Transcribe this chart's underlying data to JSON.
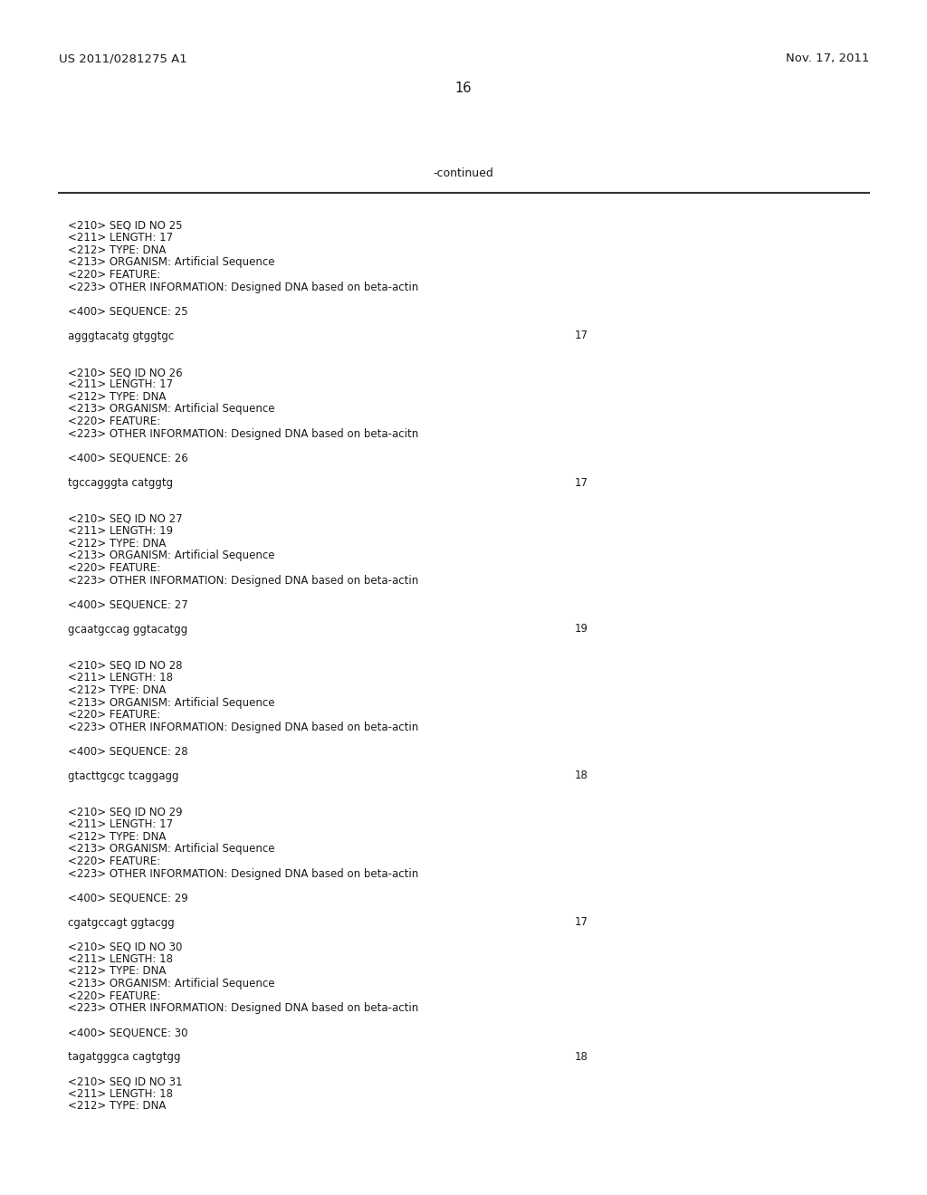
{
  "background_color": "#ffffff",
  "page_number": "16",
  "patent_number": "US 2011/0281275 A1",
  "patent_date": "Nov. 17, 2011",
  "continued_label": "-continued",
  "body_font_size": 8.5,
  "header_font_size": 9.0,
  "page_num_font_size": 10.5,
  "patent_info_font_size": 9.5,
  "line_color": "#333333",
  "text_color": "#1a1a1a",
  "content_lines": [
    {
      "text": "<210> SEQ ID NO 25",
      "x": 75,
      "num": null
    },
    {
      "text": "<211> LENGTH: 17",
      "x": 75,
      "num": null
    },
    {
      "text": "<212> TYPE: DNA",
      "x": 75,
      "num": null
    },
    {
      "text": "<213> ORGANISM: Artificial Sequence",
      "x": 75,
      "num": null
    },
    {
      "text": "<220> FEATURE:",
      "x": 75,
      "num": null
    },
    {
      "text": "<223> OTHER INFORMATION: Designed DNA based on beta-actin",
      "x": 75,
      "num": null
    },
    {
      "text": "",
      "x": 75,
      "num": null
    },
    {
      "text": "<400> SEQUENCE: 25",
      "x": 75,
      "num": null
    },
    {
      "text": "",
      "x": 75,
      "num": null
    },
    {
      "text": "agggtacatg gtggtgc",
      "x": 75,
      "num": "17"
    },
    {
      "text": "",
      "x": 75,
      "num": null
    },
    {
      "text": "",
      "x": 75,
      "num": null
    },
    {
      "text": "<210> SEQ ID NO 26",
      "x": 75,
      "num": null
    },
    {
      "text": "<211> LENGTH: 17",
      "x": 75,
      "num": null
    },
    {
      "text": "<212> TYPE: DNA",
      "x": 75,
      "num": null
    },
    {
      "text": "<213> ORGANISM: Artificial Sequence",
      "x": 75,
      "num": null
    },
    {
      "text": "<220> FEATURE:",
      "x": 75,
      "num": null
    },
    {
      "text": "<223> OTHER INFORMATION: Designed DNA based on beta-acitn",
      "x": 75,
      "num": null
    },
    {
      "text": "",
      "x": 75,
      "num": null
    },
    {
      "text": "<400> SEQUENCE: 26",
      "x": 75,
      "num": null
    },
    {
      "text": "",
      "x": 75,
      "num": null
    },
    {
      "text": "tgccagggta catggtg",
      "x": 75,
      "num": "17"
    },
    {
      "text": "",
      "x": 75,
      "num": null
    },
    {
      "text": "",
      "x": 75,
      "num": null
    },
    {
      "text": "<210> SEQ ID NO 27",
      "x": 75,
      "num": null
    },
    {
      "text": "<211> LENGTH: 19",
      "x": 75,
      "num": null
    },
    {
      "text": "<212> TYPE: DNA",
      "x": 75,
      "num": null
    },
    {
      "text": "<213> ORGANISM: Artificial Sequence",
      "x": 75,
      "num": null
    },
    {
      "text": "<220> FEATURE:",
      "x": 75,
      "num": null
    },
    {
      "text": "<223> OTHER INFORMATION: Designed DNA based on beta-actin",
      "x": 75,
      "num": null
    },
    {
      "text": "",
      "x": 75,
      "num": null
    },
    {
      "text": "<400> SEQUENCE: 27",
      "x": 75,
      "num": null
    },
    {
      "text": "",
      "x": 75,
      "num": null
    },
    {
      "text": "gcaatgccag ggtacatgg",
      "x": 75,
      "num": "19"
    },
    {
      "text": "",
      "x": 75,
      "num": null
    },
    {
      "text": "",
      "x": 75,
      "num": null
    },
    {
      "text": "<210> SEQ ID NO 28",
      "x": 75,
      "num": null
    },
    {
      "text": "<211> LENGTH: 18",
      "x": 75,
      "num": null
    },
    {
      "text": "<212> TYPE: DNA",
      "x": 75,
      "num": null
    },
    {
      "text": "<213> ORGANISM: Artificial Sequence",
      "x": 75,
      "num": null
    },
    {
      "text": "<220> FEATURE:",
      "x": 75,
      "num": null
    },
    {
      "text": "<223> OTHER INFORMATION: Designed DNA based on beta-actin",
      "x": 75,
      "num": null
    },
    {
      "text": "",
      "x": 75,
      "num": null
    },
    {
      "text": "<400> SEQUENCE: 28",
      "x": 75,
      "num": null
    },
    {
      "text": "",
      "x": 75,
      "num": null
    },
    {
      "text": "gtacttgcgc tcaggagg",
      "x": 75,
      "num": "18"
    },
    {
      "text": "",
      "x": 75,
      "num": null
    },
    {
      "text": "",
      "x": 75,
      "num": null
    },
    {
      "text": "<210> SEQ ID NO 29",
      "x": 75,
      "num": null
    },
    {
      "text": "<211> LENGTH: 17",
      "x": 75,
      "num": null
    },
    {
      "text": "<212> TYPE: DNA",
      "x": 75,
      "num": null
    },
    {
      "text": "<213> ORGANISM: Artificial Sequence",
      "x": 75,
      "num": null
    },
    {
      "text": "<220> FEATURE:",
      "x": 75,
      "num": null
    },
    {
      "text": "<223> OTHER INFORMATION: Designed DNA based on beta-actin",
      "x": 75,
      "num": null
    },
    {
      "text": "",
      "x": 75,
      "num": null
    },
    {
      "text": "<400> SEQUENCE: 29",
      "x": 75,
      "num": null
    },
    {
      "text": "",
      "x": 75,
      "num": null
    },
    {
      "text": "cgatgccagt ggtacgg",
      "x": 75,
      "num": "17"
    },
    {
      "text": "",
      "x": 75,
      "num": null
    },
    {
      "text": "<210> SEQ ID NO 30",
      "x": 75,
      "num": null
    },
    {
      "text": "<211> LENGTH: 18",
      "x": 75,
      "num": null
    },
    {
      "text": "<212> TYPE: DNA",
      "x": 75,
      "num": null
    },
    {
      "text": "<213> ORGANISM: Artificial Sequence",
      "x": 75,
      "num": null
    },
    {
      "text": "<220> FEATURE:",
      "x": 75,
      "num": null
    },
    {
      "text": "<223> OTHER INFORMATION: Designed DNA based on beta-actin",
      "x": 75,
      "num": null
    },
    {
      "text": "",
      "x": 75,
      "num": null
    },
    {
      "text": "<400> SEQUENCE: 30",
      "x": 75,
      "num": null
    },
    {
      "text": "",
      "x": 75,
      "num": null
    },
    {
      "text": "tagatgggca cagtgtgg",
      "x": 75,
      "num": "18"
    },
    {
      "text": "",
      "x": 75,
      "num": null
    },
    {
      "text": "<210> SEQ ID NO 31",
      "x": 75,
      "num": null
    },
    {
      "text": "<211> LENGTH: 18",
      "x": 75,
      "num": null
    },
    {
      "text": "<212> TYPE: DNA",
      "x": 75,
      "num": null
    }
  ]
}
